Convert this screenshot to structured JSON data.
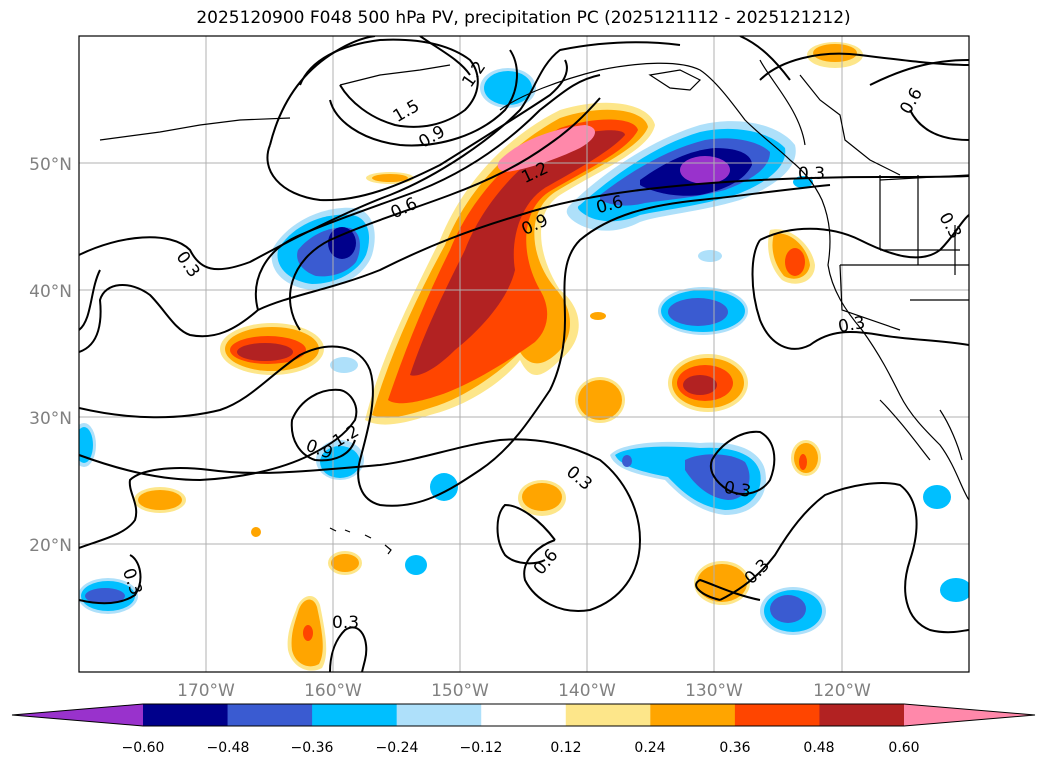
{
  "title": "2025120900 F048 500 hPa PV, precipitation PC (2025121112 - 2025121212)",
  "map": {
    "extent": {
      "lon_min": -180,
      "lon_max": -110,
      "lat_min": 10,
      "lat_max": 60
    },
    "gridlines": true,
    "lat_labels": [
      "50°N",
      "40°N",
      "30°N",
      "20°N"
    ],
    "lon_labels": [
      "170°W",
      "160°W",
      "150°W",
      "140°W",
      "130°W",
      "120°W"
    ],
    "contour_labels": [
      "1.2",
      "1.5",
      "0.9",
      "0.6",
      "1.2",
      "0.3",
      "0.9",
      "0.6",
      "0.3",
      "0.3",
      "1.2",
      "0.9",
      "0.3",
      "0.6",
      "0.3",
      "0.3",
      "0.3",
      "0.3",
      "0.6",
      "0.3"
    ]
  },
  "colorbar": {
    "colors": [
      "#9932cc",
      "#00008b",
      "#3a5bd1",
      "#00bfff",
      "#aee0fa",
      "#ffffff",
      "#fde68a",
      "#ffa500",
      "#ff4500",
      "#b22222",
      "#ff88aa"
    ],
    "ticks": [
      "−0.60",
      "−0.48",
      "−0.36",
      "−0.24",
      "−0.12",
      "0.12",
      "0.24",
      "0.36",
      "0.48",
      "0.60"
    ],
    "extend": "both"
  }
}
